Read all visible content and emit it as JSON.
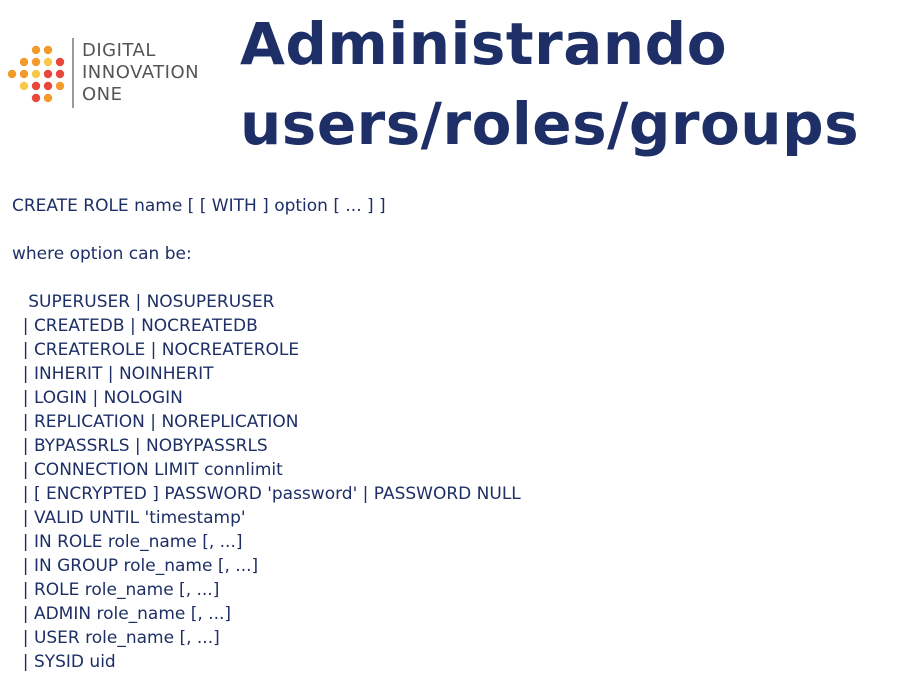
{
  "logo": {
    "line1": "DIGITAL",
    "line2": "INNOVATION",
    "line3": "ONE"
  },
  "title": {
    "line1": "Administrando",
    "line2": "users/roles/groups"
  },
  "syntax": "CREATE ROLE name [ [ WITH ] option [ ... ] ]",
  "where_label": "where option can be:",
  "options": [
    "   SUPERUSER | NOSUPERUSER",
    "  | CREATEDB | NOCREATEDB",
    "  | CREATEROLE | NOCREATEROLE",
    "  | INHERIT | NOINHERIT",
    "  | LOGIN | NOLOGIN",
    "  | REPLICATION | NOREPLICATION",
    "  | BYPASSRLS | NOBYPASSRLS",
    "  | CONNECTION LIMIT connlimit",
    "  | [ ENCRYPTED ] PASSWORD 'password' | PASSWORD NULL",
    "  | VALID UNTIL 'timestamp'",
    "  | IN ROLE role_name [, ...]",
    "  | IN GROUP role_name [, ...]",
    "  | ROLE role_name [, ...]",
    "  | ADMIN role_name [, ...]",
    "  | USER role_name [, ...]",
    "  | SYSID uid"
  ],
  "colors": {
    "title": "#1d2f66",
    "text": "#1d2f66",
    "logo_text": "#555555",
    "logo_red": "#e8473b",
    "logo_orange": "#f39a2c",
    "logo_yellow": "#f7c948"
  }
}
